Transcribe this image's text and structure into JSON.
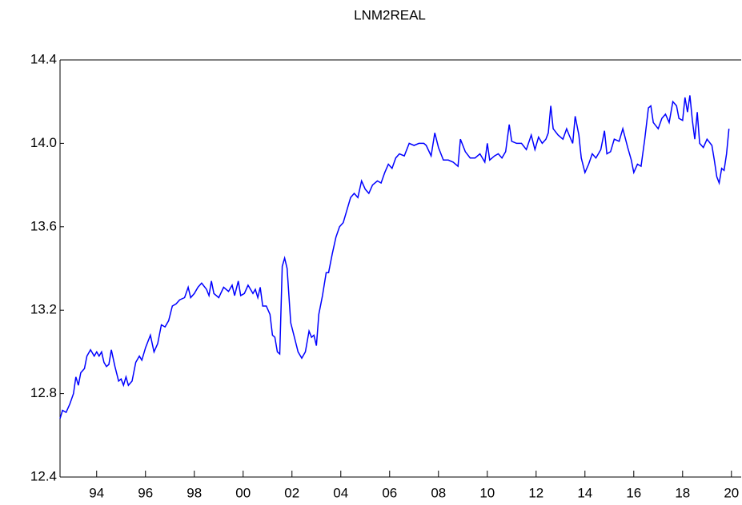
{
  "chart_data": {
    "type": "line",
    "title": "LNM2REAL",
    "xlim": [
      1993,
      2020.9
    ],
    "xticks": [
      {
        "value": 1994.5,
        "label": "94"
      },
      {
        "value": 1996.5,
        "label": "96"
      },
      {
        "value": 1998.5,
        "label": "98"
      },
      {
        "value": 2000.5,
        "label": "00"
      },
      {
        "value": 2002.5,
        "label": "02"
      },
      {
        "value": 2004.5,
        "label": "04"
      },
      {
        "value": 2006.5,
        "label": "06"
      },
      {
        "value": 2008.5,
        "label": "08"
      },
      {
        "value": 2010.5,
        "label": "10"
      },
      {
        "value": 2012.5,
        "label": "12"
      },
      {
        "value": 2014.5,
        "label": "14"
      },
      {
        "value": 2016.5,
        "label": "16"
      },
      {
        "value": 2018.5,
        "label": "18"
      },
      {
        "value": 2020.5,
        "label": "20"
      }
    ],
    "ylim": [
      12.4,
      14.4
    ],
    "yticks": [
      12.4,
      12.8,
      13.2,
      13.6,
      {
        "value": 14,
        "label": "14.0"
      },
      14.4
    ],
    "grid": false,
    "series": [
      {
        "name": "LNM2REAL",
        "color": "#0000ff",
        "x": [
          1993.0,
          1993.1,
          1993.25,
          1993.4,
          1993.55,
          1993.65,
          1993.75,
          1993.85,
          1994.0,
          1994.1,
          1994.25,
          1994.4,
          1994.5,
          1994.6,
          1994.7,
          1994.8,
          1994.9,
          1995.0,
          1995.1,
          1995.25,
          1995.4,
          1995.5,
          1995.6,
          1995.7,
          1995.8,
          1995.95,
          1996.1,
          1996.25,
          1996.35,
          1996.5,
          1996.7,
          1996.85,
          1997.0,
          1997.15,
          1997.3,
          1997.45,
          1997.6,
          1997.75,
          1997.9,
          1998.1,
          1998.25,
          1998.35,
          1998.5,
          1998.65,
          1998.8,
          1999.0,
          1999.1,
          1999.2,
          1999.3,
          1999.5,
          1999.7,
          1999.9,
          2000.05,
          2000.15,
          2000.3,
          2000.4,
          2000.55,
          2000.7,
          2000.9,
          2001.0,
          2001.1,
          2001.2,
          2001.3,
          2001.45,
          2001.6,
          2001.7,
          2001.8,
          2001.9,
          2002.0,
          2002.1,
          2002.2,
          2002.3,
          2002.45,
          2002.6,
          2002.75,
          2002.9,
          2003.05,
          2003.2,
          2003.3,
          2003.4,
          2003.5,
          2003.6,
          2003.75,
          2003.9,
          2004.0,
          2004.15,
          2004.3,
          2004.45,
          2004.6,
          2004.75,
          2004.9,
          2005.05,
          2005.2,
          2005.35,
          2005.5,
          2005.65,
          2005.8,
          2006.0,
          2006.15,
          2006.3,
          2006.45,
          2006.6,
          2006.75,
          2006.9,
          2007.1,
          2007.3,
          2007.5,
          2007.7,
          2007.9,
          2008.0,
          2008.2,
          2008.35,
          2008.5,
          2008.7,
          2008.9,
          2009.1,
          2009.3,
          2009.4,
          2009.6,
          2009.8,
          2010.0,
          2010.2,
          2010.4,
          2010.5,
          2010.6,
          2010.8,
          2010.95,
          2011.1,
          2011.25,
          2011.4,
          2011.5,
          2011.7,
          2011.9,
          2012.1,
          2012.3,
          2012.45,
          2012.6,
          2012.75,
          2012.9,
          2013.0,
          2013.1,
          2013.2,
          2013.4,
          2013.6,
          2013.75,
          2013.85,
          2014.0,
          2014.1,
          2014.25,
          2014.35,
          2014.5,
          2014.65,
          2014.8,
          2014.95,
          2015.15,
          2015.3,
          2015.4,
          2015.55,
          2015.7,
          2015.9,
          2016.05,
          2016.25,
          2016.4,
          2016.5,
          2016.65,
          2016.8,
          2016.95,
          2017.1,
          2017.2,
          2017.3,
          2017.5,
          2017.65,
          2017.8,
          2017.95,
          2018.1,
          2018.25,
          2018.35,
          2018.5,
          2018.6,
          2018.7,
          2018.8,
          2018.9,
          2019.0,
          2019.1,
          2019.2,
          2019.35,
          2019.5,
          2019.7,
          2019.8,
          2019.9,
          2020.0,
          2020.1,
          2020.2,
          2020.3,
          2020.4
        ],
        "values": [
          12.68,
          12.72,
          12.71,
          12.75,
          12.8,
          12.88,
          12.84,
          12.9,
          12.92,
          12.98,
          13.01,
          12.98,
          13.0,
          12.98,
          13.0,
          12.95,
          12.93,
          12.94,
          13.01,
          12.93,
          12.86,
          12.87,
          12.84,
          12.88,
          12.84,
          12.86,
          12.95,
          12.98,
          12.96,
          13.02,
          13.08,
          13.0,
          13.04,
          13.13,
          13.12,
          13.15,
          13.22,
          13.23,
          13.25,
          13.26,
          13.31,
          13.26,
          13.28,
          13.31,
          13.33,
          13.3,
          13.27,
          13.34,
          13.28,
          13.26,
          13.31,
          13.29,
          13.32,
          13.27,
          13.34,
          13.27,
          13.28,
          13.32,
          13.28,
          13.3,
          13.26,
          13.31,
          13.22,
          13.22,
          13.18,
          13.08,
          13.07,
          13.0,
          12.99,
          13.41,
          13.45,
          13.4,
          13.14,
          13.07,
          13.0,
          12.97,
          13.0,
          13.1,
          13.07,
          13.08,
          13.03,
          13.18,
          13.27,
          13.38,
          13.38,
          13.47,
          13.55,
          13.6,
          13.62,
          13.68,
          13.74,
          13.76,
          13.74,
          13.82,
          13.78,
          13.76,
          13.8,
          13.82,
          13.81,
          13.86,
          13.9,
          13.88,
          13.93,
          13.95,
          13.94,
          14.0,
          13.99,
          14.0,
          14.0,
          13.99,
          13.94,
          14.05,
          13.98,
          13.92,
          13.92,
          13.91,
          13.89,
          14.02,
          13.96,
          13.93,
          13.93,
          13.95,
          13.91,
          14.0,
          13.92,
          13.94,
          13.95,
          13.93,
          13.96,
          14.09,
          14.01,
          14.0,
          14.0,
          13.97,
          14.04,
          13.97,
          14.03,
          14.0,
          14.02,
          14.05,
          14.18,
          14.07,
          14.04,
          14.02,
          14.07,
          14.04,
          14.0,
          14.13,
          14.04,
          13.93,
          13.86,
          13.9,
          13.95,
          13.93,
          13.97,
          14.06,
          13.95,
          13.96,
          14.02,
          14.01,
          14.07,
          13.98,
          13.92,
          13.86,
          13.9,
          13.89,
          14.02,
          14.17,
          14.18,
          14.1,
          14.07,
          14.12,
          14.14,
          14.1,
          14.2,
          14.18,
          14.12,
          14.11,
          14.22,
          14.15,
          14.23,
          14.11,
          14.02,
          14.15,
          14.0,
          13.98,
          14.02,
          13.99,
          13.92,
          13.84,
          13.81,
          13.88,
          13.87,
          13.95,
          14.07
        ]
      }
    ]
  }
}
